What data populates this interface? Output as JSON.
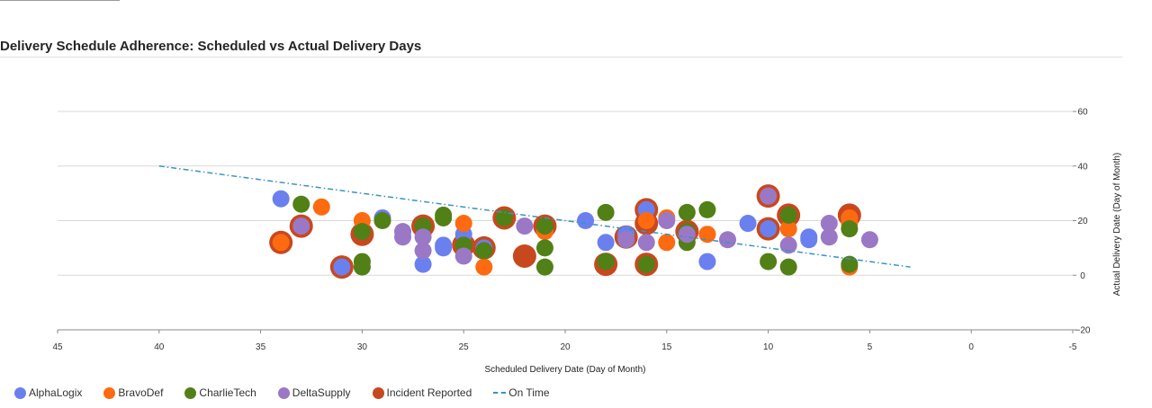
{
  "page": {
    "title": "Delivery Schedule Adherence: Scheduled vs Actual Delivery Days"
  },
  "legend": {
    "items": [
      {
        "label": "AlphaLogix",
        "color": "#6b80ef",
        "kind": "dot"
      },
      {
        "label": "BravoDef",
        "color": "#fd6a10",
        "kind": "dot"
      },
      {
        "label": "CharlieTech",
        "color": "#518017",
        "kind": "dot"
      },
      {
        "label": "DeltaSupply",
        "color": "#9a78c6",
        "kind": "dot"
      },
      {
        "label": "Incident Reported",
        "color": "#c8481e",
        "kind": "dot"
      },
      {
        "label": "On Time",
        "color": "#3a92c4",
        "kind": "line"
      }
    ]
  },
  "chart_data": {
    "type": "scatter",
    "xlabel": "Scheduled Delivery Date (Day of Month)",
    "ylabel": "Actual Delivery Date (Day of Month)",
    "xlim": [
      45,
      -5
    ],
    "ylim": [
      -20,
      60
    ],
    "x_ticks": [
      45,
      40,
      35,
      30,
      25,
      20,
      15,
      10,
      5,
      0,
      -5
    ],
    "x_tick_labels": [
      "45",
      "40",
      "35",
      "30",
      "25",
      "20",
      "15",
      "10",
      "5",
      "0",
      "-5"
    ],
    "y_ticks": [
      -20,
      0,
      20,
      40,
      60
    ],
    "y_tick_labels": [
      "−20",
      "0",
      "20",
      "40",
      "60"
    ],
    "y_axis_position": "right",
    "grid": "horizontal",
    "legend_position": "bottom-left",
    "series": [
      {
        "name": "AlphaLogix",
        "color": "#6b80ef",
        "points": [
          [
            34,
            28
          ],
          [
            31,
            3
          ],
          [
            29,
            21
          ],
          [
            27,
            4
          ],
          [
            26,
            10
          ],
          [
            26,
            11
          ],
          [
            25,
            15
          ],
          [
            24,
            10
          ],
          [
            19,
            20
          ],
          [
            18,
            12
          ],
          [
            17,
            15
          ],
          [
            16,
            24
          ],
          [
            13,
            5
          ],
          [
            11,
            19
          ],
          [
            10,
            17
          ],
          [
            8,
            14
          ],
          [
            8,
            13
          ]
        ]
      },
      {
        "name": "BravoDef",
        "color": "#fd6a10",
        "points": [
          [
            34,
            12
          ],
          [
            32,
            25
          ],
          [
            30,
            20
          ],
          [
            25,
            19
          ],
          [
            24,
            3
          ],
          [
            21,
            16
          ],
          [
            16,
            20
          ],
          [
            15,
            21
          ],
          [
            15,
            12
          ],
          [
            13,
            15
          ],
          [
            9,
            17
          ],
          [
            6,
            19
          ],
          [
            6,
            21
          ],
          [
            6,
            3
          ]
        ]
      },
      {
        "name": "CharlieTech",
        "color": "#518017",
        "points": [
          [
            33,
            26
          ],
          [
            30,
            5
          ],
          [
            30,
            3
          ],
          [
            30,
            16
          ],
          [
            29,
            20
          ],
          [
            27,
            18
          ],
          [
            26,
            22
          ],
          [
            26,
            21
          ],
          [
            25,
            11
          ],
          [
            24,
            9
          ],
          [
            23,
            21
          ],
          [
            21,
            10
          ],
          [
            21,
            3
          ],
          [
            21,
            18
          ],
          [
            18,
            23
          ],
          [
            18,
            5
          ],
          [
            16,
            4
          ],
          [
            14,
            23
          ],
          [
            14,
            12
          ],
          [
            14,
            16
          ],
          [
            13,
            24
          ],
          [
            10,
            5
          ],
          [
            9,
            22
          ],
          [
            9,
            3
          ],
          [
            6,
            4
          ],
          [
            6,
            17
          ]
        ]
      },
      {
        "name": "DeltaSupply",
        "color": "#9a78c6",
        "points": [
          [
            33,
            18
          ],
          [
            28,
            16
          ],
          [
            28,
            14
          ],
          [
            27,
            14
          ],
          [
            27,
            9
          ],
          [
            25,
            7
          ],
          [
            22,
            18
          ],
          [
            17,
            13
          ],
          [
            16,
            12
          ],
          [
            15,
            20
          ],
          [
            14,
            15
          ],
          [
            12,
            13
          ],
          [
            10,
            29
          ],
          [
            9,
            11
          ],
          [
            7,
            19
          ],
          [
            7,
            14
          ],
          [
            5,
            13
          ]
        ]
      },
      {
        "name": "Incident Reported",
        "color": "#c8481e",
        "points": [
          [
            34,
            12
          ],
          [
            33,
            18
          ],
          [
            31,
            3
          ],
          [
            30,
            15
          ],
          [
            27,
            18
          ],
          [
            25,
            11
          ],
          [
            24,
            10
          ],
          [
            23,
            21
          ],
          [
            22,
            7
          ],
          [
            21,
            18
          ],
          [
            18,
            4
          ],
          [
            17,
            14
          ],
          [
            16,
            24
          ],
          [
            16,
            19
          ],
          [
            16,
            4
          ],
          [
            14,
            16
          ],
          [
            10,
            29
          ],
          [
            10,
            17
          ],
          [
            9,
            22
          ],
          [
            6,
            22
          ]
        ]
      },
      {
        "name": "On Time",
        "color": "#3a92c4",
        "kind": "line",
        "points": [
          [
            40,
            40
          ],
          [
            3,
            3
          ]
        ]
      }
    ]
  }
}
